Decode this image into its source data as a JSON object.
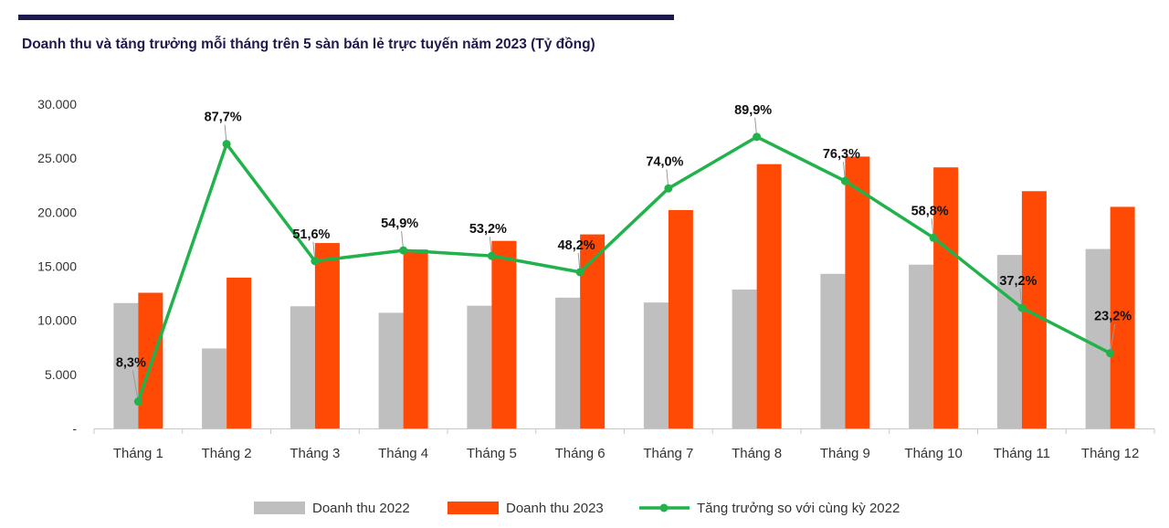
{
  "chart_data": {
    "type": "bar",
    "title": "Doanh thu và tăng trưởng mỗi tháng trên 5 sàn bán lẻ trực tuyến năm 2023 (Tỷ đồng)",
    "categories": [
      "Tháng 1",
      "Tháng 2",
      "Tháng 3",
      "Tháng 4",
      "Tháng 5",
      "Tháng 6",
      "Tháng 7",
      "Tháng 8",
      "Tháng 9",
      "Tháng 10",
      "Tháng 11",
      "Tháng 12"
    ],
    "yticks": [
      "-",
      "5.000",
      "10.000",
      "15.000",
      "20.000",
      "25.000",
      "30.000"
    ],
    "ylim": [
      0,
      30000
    ],
    "series": [
      {
        "name": "Doanh thu 2022",
        "type": "bar",
        "color": "#bfbfbf",
        "values": [
          11600,
          7400,
          11300,
          10700,
          11350,
          12100,
          11650,
          12850,
          14300,
          15150,
          16050,
          16600
        ]
      },
      {
        "name": "Doanh thu 2023",
        "type": "bar",
        "color": "#ff4a05",
        "values": [
          12550,
          13950,
          17150,
          16550,
          17350,
          17950,
          20200,
          24450,
          25150,
          24150,
          21950,
          20500
        ]
      },
      {
        "name": "Tăng trưởng so với cùng kỳ 2022",
        "type": "line",
        "color": "#22b24c",
        "values": [
          8.3,
          87.7,
          51.6,
          54.9,
          53.2,
          48.2,
          74.0,
          89.9,
          76.3,
          58.8,
          37.2,
          23.2
        ],
        "labels": [
          "8,3%",
          "87,7%",
          "51,6%",
          "54,9%",
          "53,2%",
          "48,2%",
          "74,0%",
          "89,9%",
          "76,3%",
          "58,8%",
          "37,2%",
          "23,2%"
        ],
        "secondary_axis_range": [
          0,
          100
        ]
      }
    ],
    "legend_position": "bottom",
    "grid": false
  }
}
